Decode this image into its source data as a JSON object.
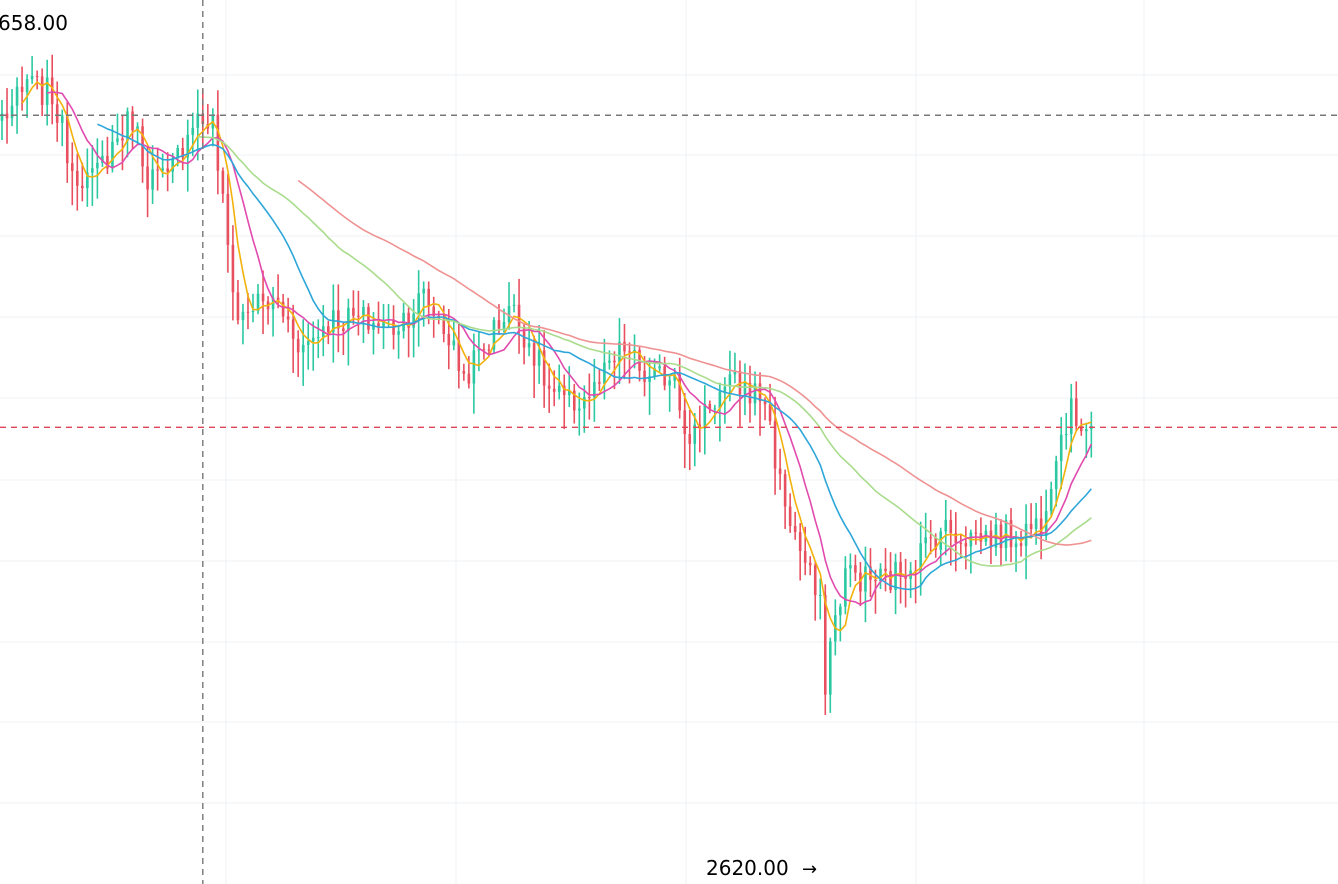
{
  "chart_data": {
    "type": "candlestick",
    "high_label": "658.00",
    "low_label": "2620.00",
    "low_arrow": "→",
    "ylim": [
      2612,
      2670
    ],
    "x_count": 218,
    "up_color": "#2bc8a2",
    "down_color": "#e8505f",
    "crosshair_index": 40,
    "crosshair_price": 2664.1,
    "last_price_line": 2642.5,
    "close_anchors": [
      [
        0,
        2664.0
      ],
      [
        6,
        2666.0
      ],
      [
        10,
        2665.5
      ],
      [
        14,
        2660.5
      ],
      [
        18,
        2659.5
      ],
      [
        22,
        2662.0
      ],
      [
        26,
        2664.0
      ],
      [
        29,
        2660.0
      ],
      [
        33,
        2659.5
      ],
      [
        38,
        2664.0
      ],
      [
        42,
        2663.5
      ],
      [
        45,
        2655.0
      ],
      [
        47,
        2650.0
      ],
      [
        50,
        2651.0
      ],
      [
        55,
        2651.0
      ],
      [
        60,
        2648.0
      ],
      [
        65,
        2650.0
      ],
      [
        70,
        2650.0
      ],
      [
        78,
        2649.5
      ],
      [
        84,
        2651.5
      ],
      [
        88,
        2649.5
      ],
      [
        92,
        2646.0
      ],
      [
        96,
        2648.0
      ],
      [
        101,
        2651.0
      ],
      [
        105,
        2648.5
      ],
      [
        109,
        2645.0
      ],
      [
        113,
        2644.0
      ],
      [
        118,
        2645.0
      ],
      [
        124,
        2648.0
      ],
      [
        129,
        2645.5
      ],
      [
        134,
        2646.5
      ],
      [
        137,
        2641.0
      ],
      [
        140,
        2644.0
      ],
      [
        146,
        2645.5
      ],
      [
        152,
        2644.5
      ],
      [
        155,
        2638.5
      ],
      [
        158,
        2635.0
      ],
      [
        162,
        2631.0
      ],
      [
        165,
        2627.5
      ],
      [
        168,
        2632.5
      ],
      [
        172,
        2632.0
      ],
      [
        177,
        2632.0
      ],
      [
        182,
        2633.5
      ],
      [
        187,
        2635.5
      ],
      [
        192,
        2635.0
      ],
      [
        197,
        2635.0
      ],
      [
        202,
        2635.0
      ],
      [
        207,
        2636.0
      ],
      [
        210,
        2641.0
      ],
      [
        212,
        2643.0
      ],
      [
        217,
        2643.0
      ]
    ],
    "series": [
      {
        "period": 5,
        "color": "#f2b20c"
      },
      {
        "period": 10,
        "color": "#e14aae"
      },
      {
        "period": 20,
        "color": "#2ea6d9"
      },
      {
        "period": 40,
        "color": "#a9dc8c"
      },
      {
        "period": 60,
        "color": "#ef9292"
      }
    ],
    "grid": true
  }
}
